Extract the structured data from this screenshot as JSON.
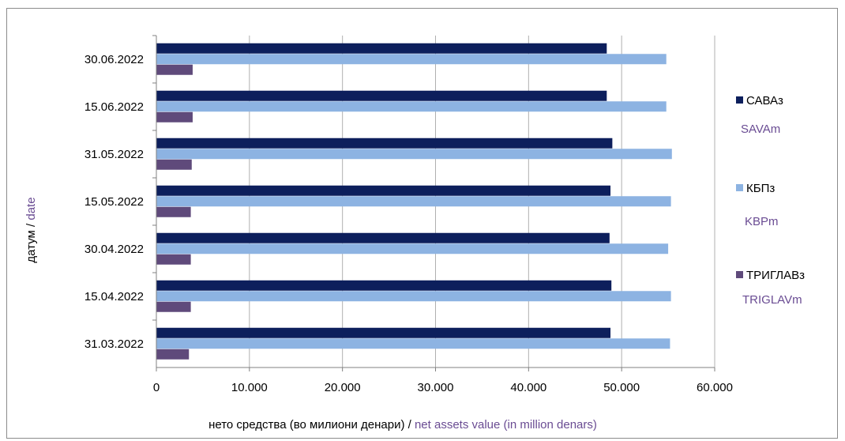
{
  "chart_data": {
    "type": "bar",
    "orientation": "horizontal",
    "categories": [
      "31.03.2022",
      "15.04.2022",
      "30.04.2022",
      "15.05.2022",
      "31.05.2022",
      "15.06.2022",
      "30.06.2022"
    ],
    "series": [
      {
        "name": "САВАз",
        "name_en": "SAVAm",
        "color": "#0d1f5c",
        "values": [
          48800,
          48900,
          48700,
          48800,
          49000,
          48400,
          48400
        ]
      },
      {
        "name": "КБПз",
        "name_en": "KBPm",
        "color": "#8db3e2",
        "values": [
          55200,
          55300,
          55000,
          55300,
          55400,
          54800,
          54800
        ]
      },
      {
        "name": "ТРИГЛАВз",
        "name_en": "TRIGLAVm",
        "color": "#5f4a7b",
        "values": [
          3500,
          3700,
          3700,
          3700,
          3800,
          3900,
          3900
        ]
      }
    ],
    "xlim": [
      0,
      60000
    ],
    "x_ticks": [
      "0",
      "10.000",
      "20.000",
      "30.000",
      "40.000",
      "50.000",
      "60.000"
    ],
    "xlabel": "нето средства (во милиони денари) / ",
    "xlabel_en": "net assets value (in million denars)",
    "ylabel": "датум  / ",
    "ylabel_en": "date",
    "grid": "vertical",
    "legend_position": "right"
  }
}
